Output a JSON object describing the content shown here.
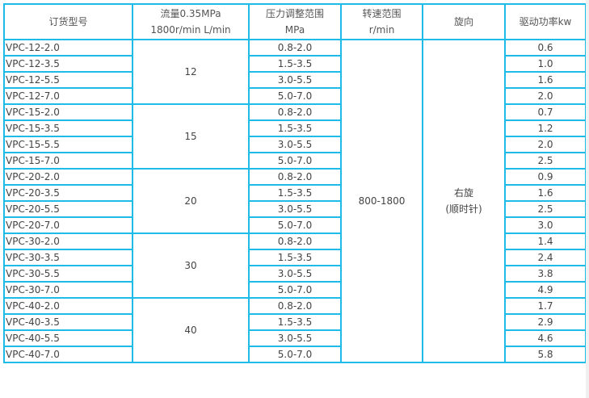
{
  "headers": [
    [
      "订货型号"
    ],
    [
      "流量0.35MPa",
      "1800r/min L/min"
    ],
    [
      "压力调整范围",
      "MPa"
    ],
    [
      "转速范围",
      "r/min"
    ],
    [
      "旋向"
    ],
    [
      "驱动功率kw"
    ]
  ],
  "speed_range": "800-1800",
  "rotation": [
    "右旋",
    "(顺时针)"
  ],
  "groups": [
    {
      "flow": "12",
      "rows": [
        [
          "VPC-12-2.0",
          "0.8-2.0",
          "0.6"
        ],
        [
          "VPC-12-3.5",
          "1.5-3.5",
          "1.0"
        ],
        [
          "VPC-12-5.5",
          "3.0-5.5",
          "1.6"
        ],
        [
          "VPC-12-7.0",
          "5.0-7.0",
          "2.0"
        ]
      ]
    },
    {
      "flow": "15",
      "rows": [
        [
          "VPC-15-2.0",
          "0.8-2.0",
          "0.7"
        ],
        [
          "VPC-15-3.5",
          "1.5-3.5",
          "1.2"
        ],
        [
          "VPC-15-5.5",
          "3.0-5.5",
          "2.0"
        ],
        [
          "VPC-15-7.0",
          "5.0-7.0",
          "2.5"
        ]
      ]
    },
    {
      "flow": "20",
      "rows": [
        [
          "VPC-20-2.0",
          "0.8-2.0",
          "0.9"
        ],
        [
          "VPC-20-3.5",
          "1.5-3.5",
          "1.6"
        ],
        [
          "VPC-20-5.5",
          "3.0-5.5",
          "2.5"
        ],
        [
          "VPC-20-7.0",
          "5.0-7.0",
          "3.0"
        ]
      ]
    },
    {
      "flow": "30",
      "rows": [
        [
          "VPC-30-2.0",
          "0.8-2.0",
          "1.4"
        ],
        [
          "VPC-30-3.5",
          "1.5-3.5",
          "2.4"
        ],
        [
          "VPC-30-5.5",
          "3.0-5.5",
          "3.8"
        ],
        [
          "VPC-30-7.0",
          "5.0-7.0",
          "4.9"
        ]
      ]
    },
    {
      "flow": "40",
      "rows": [
        [
          "VPC-40-2.0",
          "0.8-2.0",
          "1.7"
        ],
        [
          "VPC-40-3.5",
          "1.5-3.5",
          "2.9"
        ],
        [
          "VPC-40-5.5",
          "3.0-5.5",
          "4.6"
        ],
        [
          "VPC-40-7.0",
          "5.0-7.0",
          "5.8"
        ]
      ]
    }
  ]
}
